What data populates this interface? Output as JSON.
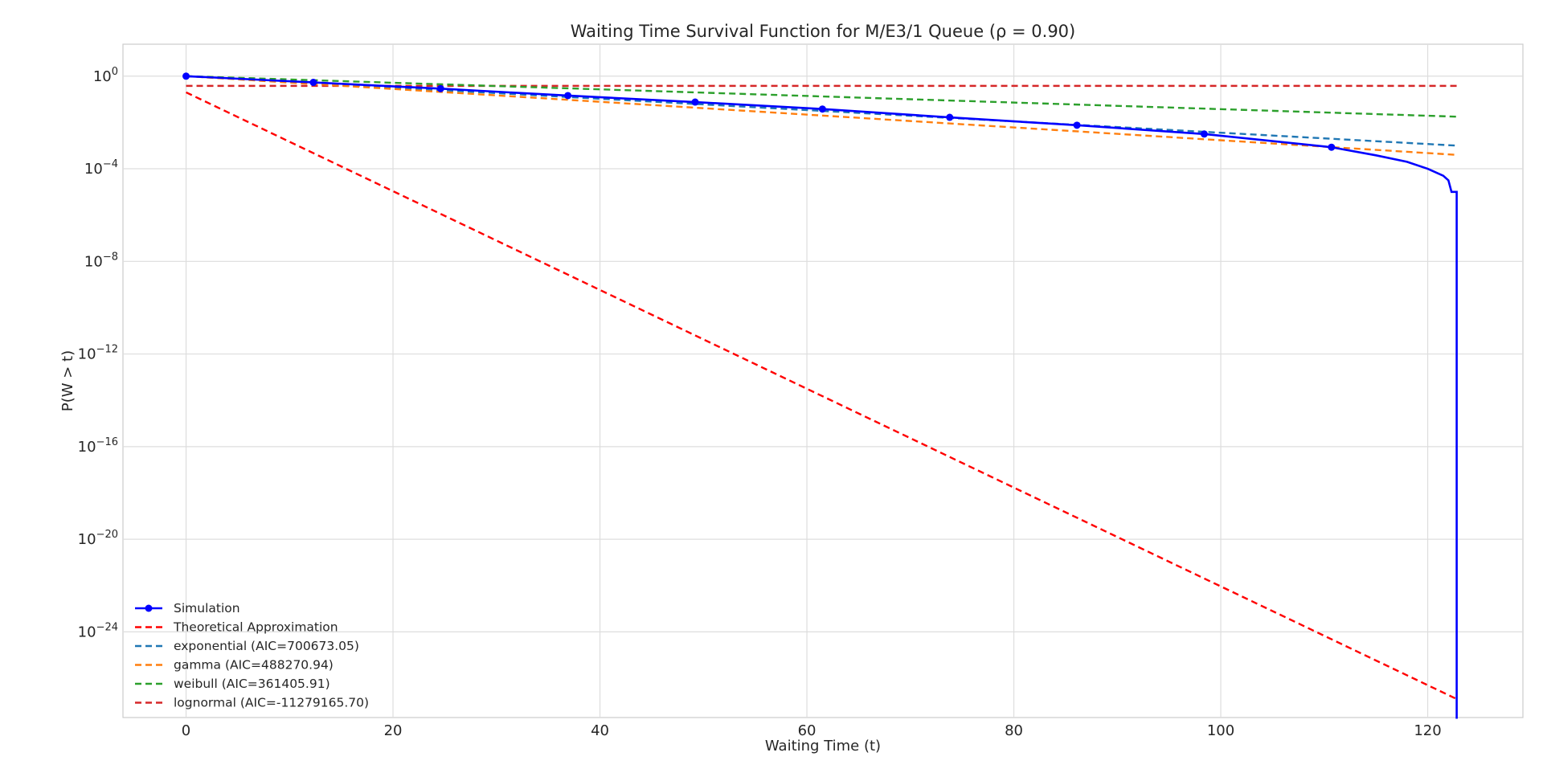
{
  "chart_data": {
    "type": "line",
    "title": "Waiting Time Survival Function for M/E3/1 Queue (ρ = 0.90)",
    "xlabel": "Waiting Time (t)",
    "ylabel": "P(W > t)",
    "xlim": [
      -6.1,
      129.2
    ],
    "ylim_log10": [
      -27.7,
      1.38
    ],
    "y_scale": "log",
    "x_ticks": [
      0,
      20,
      40,
      60,
      80,
      100,
      120
    ],
    "y_ticks_exponents": [
      0,
      -4,
      -8,
      -12,
      -16,
      -20,
      -24
    ],
    "y_tick_base": "10",
    "grid": true,
    "legend_position": "lower-left",
    "series": [
      {
        "name": "Simulation",
        "color": "#0000ff",
        "style": "solid-marker",
        "x": [
          0,
          12.3,
          24.6,
          36.9,
          49.2,
          61.5,
          73.8,
          86.1,
          98.4,
          110.7,
          115,
          118,
          120,
          121.5,
          122,
          122.3,
          122.8,
          122.8
        ],
        "log10_y": [
          0,
          -0.27,
          -0.54,
          -0.84,
          -1.12,
          -1.42,
          -1.78,
          -2.12,
          -2.5,
          -3.07,
          -3.42,
          -3.7,
          -4.0,
          -4.3,
          -4.5,
          -5.0,
          -5.0,
          -28
        ]
      },
      {
        "name": "Theoretical Approximation",
        "color": "#ff0000",
        "style": "dashed",
        "x": [
          0,
          122.8
        ],
        "log10_y": [
          -0.7,
          -26.9
        ]
      },
      {
        "name": "exponential (AIC=700673.05)",
        "color": "#1f77b4",
        "style": "dashed",
        "x": [
          0,
          122.8
        ],
        "log10_y": [
          0,
          -3.0
        ]
      },
      {
        "name": "gamma (AIC=488270.94)",
        "color": "#ff7f0e",
        "style": "dashed",
        "x": [
          0,
          122.8
        ],
        "log10_y": [
          0,
          -3.4
        ]
      },
      {
        "name": "weibull (AIC=361405.91)",
        "color": "#2ca02c",
        "style": "dashed",
        "x": [
          0,
          122.8
        ],
        "log10_y": [
          0,
          -1.75
        ]
      },
      {
        "name": "lognormal (AIC=-11279165.70)",
        "color": "#d62728",
        "style": "dashed",
        "x": [
          0,
          122.8
        ],
        "log10_y": [
          -0.42,
          -0.42
        ]
      }
    ]
  }
}
